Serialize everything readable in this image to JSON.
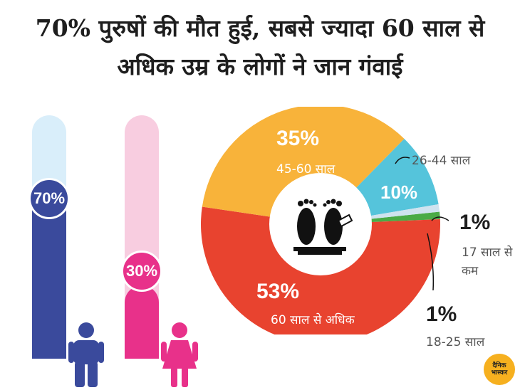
{
  "title_line1": "70% पुरुषों की मौत हुई, सबसे ज्यादा 60 साल से",
  "title_line2": "अधिक उम्र के लोगों ने जान गंवाई",
  "logo": {
    "line1": "दैनिक",
    "line2": "भास्कर"
  },
  "chart_data": [
    {
      "type": "bar",
      "categories": [
        "पुरुष",
        "महिला"
      ],
      "values": [
        70,
        30
      ],
      "value_labels": [
        "70%",
        "30%"
      ],
      "ylim": [
        0,
        100
      ],
      "colors": {
        "male_fill": "#3a4a9c",
        "male_track": "#d9eefa",
        "female_fill": "#e8318a",
        "female_track": "#f8cde0"
      }
    },
    {
      "type": "pie",
      "style": "donut",
      "slices": [
        {
          "label": "60 साल से अधिक",
          "value": 53,
          "value_label": "53%",
          "color": "#e8432f"
        },
        {
          "label": "45-60 साल",
          "value": 35,
          "value_label": "35%",
          "color": "#f8b33a"
        },
        {
          "label": "26-44 साल",
          "value": 10,
          "value_label": "10%",
          "color": "#55c4db"
        },
        {
          "label": "17 साल से कम",
          "value": 1,
          "value_label": "1%",
          "color": "#cfe3ef"
        },
        {
          "label": "18-25 साल",
          "value": 1,
          "value_label": "1%",
          "color": "#4aab46"
        }
      ]
    }
  ]
}
